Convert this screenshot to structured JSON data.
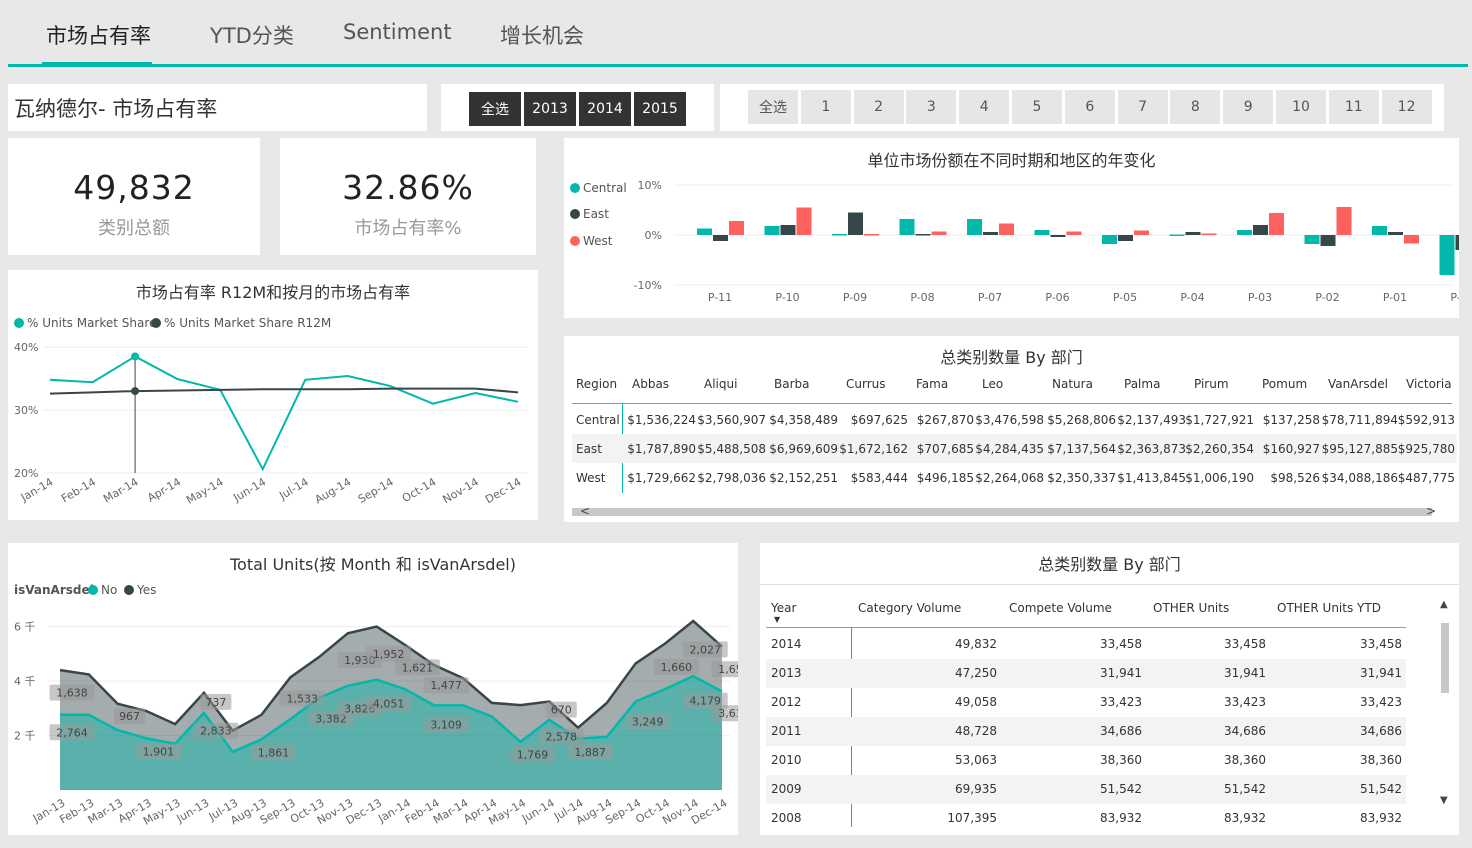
{
  "tabs": [
    {
      "label": "市场占有率",
      "active": true
    },
    {
      "label": "YTD分类",
      "active": false
    },
    {
      "label": "Sentiment",
      "active": false
    },
    {
      "label": "增长机会",
      "active": false
    }
  ],
  "page_title": "瓦纳德尔- 市场占有率",
  "year_slicer": [
    "全选",
    "2013",
    "2014",
    "2015"
  ],
  "month_slicer": [
    "全选",
    "1",
    "2",
    "3",
    "4",
    "5",
    "6",
    "7",
    "8",
    "9",
    "10",
    "11",
    "12"
  ],
  "kpis": [
    {
      "value": "49,832",
      "label": "类别总额"
    },
    {
      "value": "32.86%",
      "label": "市场占有率%"
    }
  ],
  "colors": {
    "teal": "#01b8aa",
    "dark": "#374649",
    "red": "#fd625e",
    "gray": "#a0a0a0"
  },
  "yoy_chart": {
    "title": "单位市场份额在不同时期和地区的年变化",
    "legend": [
      "Central",
      "East",
      "West"
    ],
    "y_ticks": [
      "10%",
      "0%",
      "-10%"
    ],
    "chart_data": {
      "type": "bar",
      "categories": [
        "P-11",
        "P-10",
        "P-09",
        "P-08",
        "P-07",
        "P-06",
        "P-05",
        "P-04",
        "P-03",
        "P-02",
        "P-01",
        "P-00"
      ],
      "ylim": [
        -10,
        10
      ],
      "series": [
        {
          "name": "Central",
          "values": [
            1.3,
            1.8,
            0.2,
            3.2,
            3.2,
            1.0,
            -1.8,
            0.1,
            1.0,
            -1.8,
            1.8,
            -8.0
          ]
        },
        {
          "name": "East",
          "values": [
            -1.2,
            2.0,
            4.5,
            0.2,
            0.6,
            -0.4,
            -1.2,
            0.6,
            2.0,
            -2.2,
            0.6,
            -3.0
          ]
        },
        {
          "name": "West",
          "values": [
            2.8,
            5.5,
            0.2,
            0.7,
            2.3,
            0.7,
            0.9,
            0.3,
            4.4,
            5.6,
            -1.7,
            -5.2
          ]
        }
      ]
    }
  },
  "line_chart": {
    "title": "市场占有率 R12M和按月的市场占有率",
    "legend": [
      "% Units Market Share",
      "% Units Market Share R12M"
    ],
    "y_ticks": [
      "40%",
      "30%",
      "20%"
    ],
    "chart_data": {
      "type": "line",
      "categories": [
        "Jan-14",
        "Feb-14",
        "Mar-14",
        "Apr-14",
        "May-14",
        "Jun-14",
        "Jul-14",
        "Aug-14",
        "Sep-14",
        "Oct-14",
        "Nov-14",
        "Dec-14"
      ],
      "ylim": [
        20,
        40
      ],
      "series": [
        {
          "name": "% Units Market Share",
          "values": [
            34.8,
            34.4,
            38.5,
            34.9,
            33.2,
            20.6,
            34.8,
            35.4,
            33.8,
            31.0,
            32.7,
            31.3
          ]
        },
        {
          "name": "% Units Market Share R12M",
          "values": [
            32.6,
            32.8,
            33.0,
            33.1,
            33.2,
            33.3,
            33.3,
            33.3,
            33.4,
            33.4,
            33.4,
            32.8
          ]
        }
      ]
    }
  },
  "region_table": {
    "title": "总类别数量 By 部门",
    "columns": [
      "Region",
      "Abbas",
      "Aliqui",
      "Barba",
      "Currus",
      "Fama",
      "Leo",
      "Natura",
      "Palma",
      "Pirum",
      "Pomum",
      "VanArsdel",
      "Victoria"
    ],
    "rows": [
      [
        "Central",
        "$1,536,224",
        "$3,560,907",
        "$4,358,489",
        "$697,625",
        "$267,870",
        "$3,476,598",
        "$5,268,806",
        "$2,137,493",
        "$1,727,921",
        "$137,258",
        "$78,711,894",
        "$592,913"
      ],
      [
        "East",
        "$1,787,890",
        "$5,488,508",
        "$6,969,609",
        "$1,672,162",
        "$707,685",
        "$4,284,435",
        "$7,137,564",
        "$2,363,873",
        "$2,260,354",
        "$160,927",
        "$95,127,885",
        "$925,780"
      ],
      [
        "West",
        "$1,729,662",
        "$2,798,036",
        "$2,152,251",
        "$583,444",
        "$496,185",
        "$2,264,068",
        "$2,350,337",
        "$1,413,845",
        "$1,006,190",
        "$98,526",
        "$34,088,186",
        "$487,775"
      ]
    ],
    "scroll_left": "<",
    "scroll_right": ">"
  },
  "area_chart": {
    "title": "Total Units(按 Month 和 isVanArsdel)",
    "legend_title": "isVanArsdel",
    "legend": [
      "No",
      "Yes"
    ],
    "y_ticks": [
      "6 千",
      "4 千",
      "2 千"
    ],
    "chart_data": {
      "type": "area",
      "categories": [
        "Jan-13",
        "Feb-13",
        "Mar-13",
        "Apr-13",
        "May-13",
        "Jun-13",
        "Jul-13",
        "Aug-13",
        "Sep-13",
        "Oct-13",
        "Nov-13",
        "Dec-13",
        "Jan-14",
        "Feb-14",
        "Mar-14",
        "Apr-14",
        "May-14",
        "Jun-14",
        "Jul-14",
        "Aug-14",
        "Sep-14",
        "Oct-14",
        "Nov-14",
        "Dec-14"
      ],
      "ylim": [
        0,
        6500
      ],
      "stacked": true,
      "series": [
        {
          "name": "Yes",
          "values": [
            2764,
            2764,
            2200,
            1901,
            1700,
            2833,
            1400,
            1861,
            2600,
            3382,
            3826,
            4051,
            3700,
            3109,
            3109,
            2700,
            1769,
            2578,
            1887,
            1950,
            3249,
            3700,
            4179,
            3619
          ]
        },
        {
          "name": "No",
          "values": [
            1638,
            1480,
            967,
            1000,
            720,
            737,
            780,
            900,
            1533,
            1500,
            1930,
            1952,
            1621,
            1477,
            1000,
            500,
            1350,
            670,
            400,
            1250,
            1400,
            1660,
            2027,
            1650
          ]
        }
      ],
      "labels_yes": [
        "2,764",
        "",
        "",
        "1,901",
        "",
        "2,833",
        "",
        "1,861",
        "",
        "3,382",
        "3,826",
        "4,051",
        "",
        "3,109",
        "",
        "",
        "1,769",
        "2,578",
        "1,887",
        "",
        "3,249",
        "",
        "4,179",
        "3,619"
      ],
      "labels_no": [
        "1,638",
        "",
        "967",
        "",
        "",
        "737",
        "",
        "",
        "1,533",
        "",
        "1,930",
        "1,952",
        "1,621",
        "1,477",
        "",
        "",
        "",
        "670",
        "",
        "",
        "",
        "1,660",
        "2,027",
        "1,650"
      ]
    }
  },
  "year_table": {
    "title": "总类别数量 By 部门",
    "columns": [
      "Year",
      "Category Volume",
      "Compete Volume",
      "OTHER Units",
      "OTHER Units YTD"
    ],
    "rows": [
      [
        "2014",
        "49,832",
        "33,458",
        "33,458",
        "33,458"
      ],
      [
        "2013",
        "47,250",
        "31,941",
        "31,941",
        "31,941"
      ],
      [
        "2012",
        "49,058",
        "33,423",
        "33,423",
        "33,423"
      ],
      [
        "2011",
        "48,728",
        "34,686",
        "34,686",
        "34,686"
      ],
      [
        "2010",
        "53,063",
        "38,360",
        "38,360",
        "38,360"
      ],
      [
        "2009",
        "69,935",
        "51,542",
        "51,542",
        "51,542"
      ],
      [
        "2008",
        "107,395",
        "83,932",
        "83,932",
        "83,932"
      ]
    ]
  }
}
